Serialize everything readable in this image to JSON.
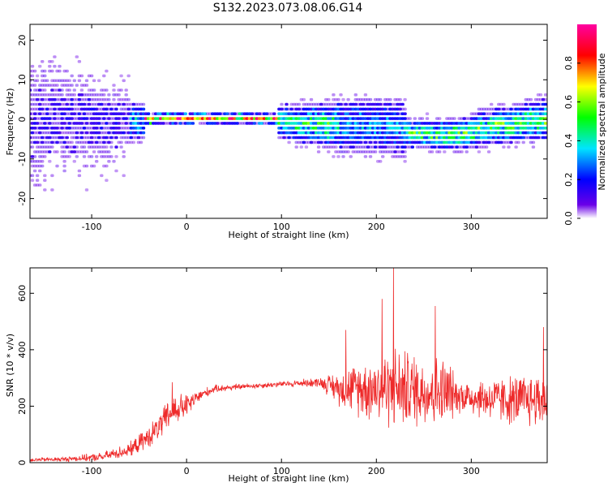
{
  "title": "S132.2023.073.08.06.G14",
  "chart_data": [
    {
      "type": "heatmap",
      "xlabel": "Height of straight line (km)",
      "ylabel": "Frequency (Hz)",
      "xlim": [
        -165,
        380
      ],
      "ylim": [
        -25,
        24
      ],
      "xticks": [
        -100,
        0,
        100,
        200,
        300
      ],
      "yticks": [
        -20,
        -10,
        0,
        10,
        20
      ],
      "colorbar": {
        "label": "Normalized spectral amplitude",
        "range": [
          0,
          1
        ],
        "ticks": [
          0.0,
          0.2,
          0.4,
          0.6,
          0.8
        ],
        "colormap": [
          "#ffffff",
          "#6a00e8",
          "#0000ff",
          "#00e5ff",
          "#00ff00",
          "#ffff00",
          "#ff0000",
          "#ff00a0"
        ]
      },
      "ridge_center_hz": [
        [
          -165,
          0
        ],
        [
          -60,
          -1
        ],
        [
          -40,
          0
        ],
        [
          -20,
          0.2
        ],
        [
          0,
          0.2
        ],
        [
          50,
          0.3
        ],
        [
          90,
          0.1
        ],
        [
          110,
          -1
        ],
        [
          150,
          -1.5
        ],
        [
          200,
          -1.5
        ],
        [
          225,
          -2
        ],
        [
          235,
          -3.5
        ],
        [
          280,
          -4
        ],
        [
          320,
          -2
        ],
        [
          380,
          0
        ]
      ]
    },
    {
      "type": "line",
      "xlabel": "Height of straight line (km)",
      "ylabel": "SNR (10 * v/v)",
      "xlim": [
        -165,
        380
      ],
      "ylim": [
        0,
        690
      ],
      "xticks": [
        -100,
        0,
        100,
        200,
        300
      ],
      "yticks": [
        0,
        200,
        400,
        600
      ],
      "color": "#ee2a2a",
      "envelope": [
        {
          "x": -165,
          "mean": 10,
          "amp": 8
        },
        {
          "x": -130,
          "mean": 12,
          "amp": 10
        },
        {
          "x": -90,
          "mean": 20,
          "amp": 18
        },
        {
          "x": -60,
          "mean": 45,
          "amp": 30
        },
        {
          "x": -40,
          "mean": 90,
          "amp": 45
        },
        {
          "x": -25,
          "mean": 140,
          "amp": 60
        },
        {
          "x": -15,
          "mean": 185,
          "amp": 70
        },
        {
          "x": 0,
          "mean": 200,
          "amp": 50
        },
        {
          "x": 15,
          "mean": 240,
          "amp": 25
        },
        {
          "x": 30,
          "mean": 262,
          "amp": 15
        },
        {
          "x": 60,
          "mean": 270,
          "amp": 12
        },
        {
          "x": 100,
          "mean": 278,
          "amp": 12
        },
        {
          "x": 140,
          "mean": 285,
          "amp": 20
        },
        {
          "x": 165,
          "mean": 260,
          "amp": 80
        },
        {
          "x": 190,
          "mean": 265,
          "amp": 130
        },
        {
          "x": 220,
          "mean": 265,
          "amp": 170
        },
        {
          "x": 250,
          "mean": 255,
          "amp": 150
        },
        {
          "x": 278,
          "mean": 245,
          "amp": 150
        },
        {
          "x": 282,
          "mean": 240,
          "amp": 70
        },
        {
          "x": 320,
          "mean": 225,
          "amp": 90
        },
        {
          "x": 350,
          "mean": 220,
          "amp": 110
        },
        {
          "x": 380,
          "mean": 225,
          "amp": 120
        }
      ],
      "peaks": [
        {
          "x": -15,
          "y": 285
        },
        {
          "x": 218,
          "y": 690
        },
        {
          "x": 206,
          "y": 580
        },
        {
          "x": 262,
          "y": 555
        },
        {
          "x": 168,
          "y": 470
        },
        {
          "x": 376,
          "y": 480
        }
      ]
    }
  ]
}
